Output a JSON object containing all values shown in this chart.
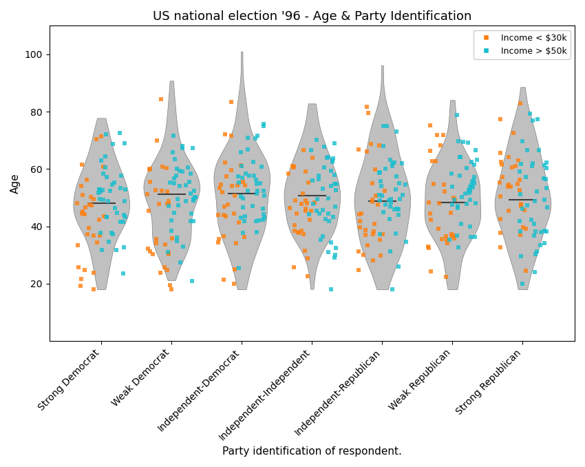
{
  "title": "US national election '96 - Age & Party Identification",
  "xlabel": "Party identification of respondent.",
  "ylabel": "Age",
  "categories": [
    "Strong Democrat",
    "Weak Democrat",
    "Independent-Democrat",
    "Independent-Independent",
    "Independent-Republican",
    "Weak Republican",
    "Strong Republican"
  ],
  "ylim": [
    0,
    110
  ],
  "yticks": [
    20,
    40,
    60,
    80,
    100
  ],
  "color_low": "#ff7f0e",
  "color_high": "#17becf",
  "legend_low": "Income < $30k",
  "legend_high": "Income > $50k",
  "violin_color": "#c0c0c0",
  "violin_edgecolor": "#808080",
  "violin_alpha": 1.0,
  "median_color": "#404040",
  "marker_size": 5,
  "marker": "s",
  "jitter": 0.05,
  "figsize": [
    8.5,
    6.78
  ],
  "dpi": 100,
  "title_fontsize": 13
}
